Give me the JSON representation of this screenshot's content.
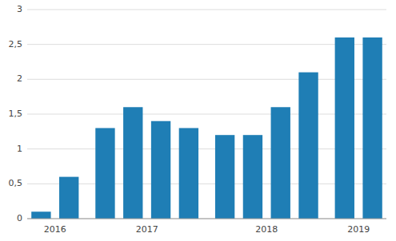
{
  "chart_data": {
    "type": "bar",
    "categories": [
      "2016",
      null,
      "2017",
      null,
      null,
      null,
      "2018",
      null,
      null,
      null,
      "2019",
      null
    ],
    "values": [
      0.1,
      0.6,
      1.3,
      1.6,
      1.4,
      1.3,
      1.2,
      1.2,
      1.6,
      2.1,
      2.6,
      2.6
    ],
    "color": "#1f7eb5",
    "ylim": [
      0,
      3
    ],
    "yticks": [
      0,
      {
        "value": 0.5,
        "label": "0,5"
      },
      1,
      {
        "value": 1.5,
        "label": "1,5"
      },
      2,
      {
        "value": 2.5,
        "label": "2,5"
      },
      3
    ],
    "grid": true
  }
}
